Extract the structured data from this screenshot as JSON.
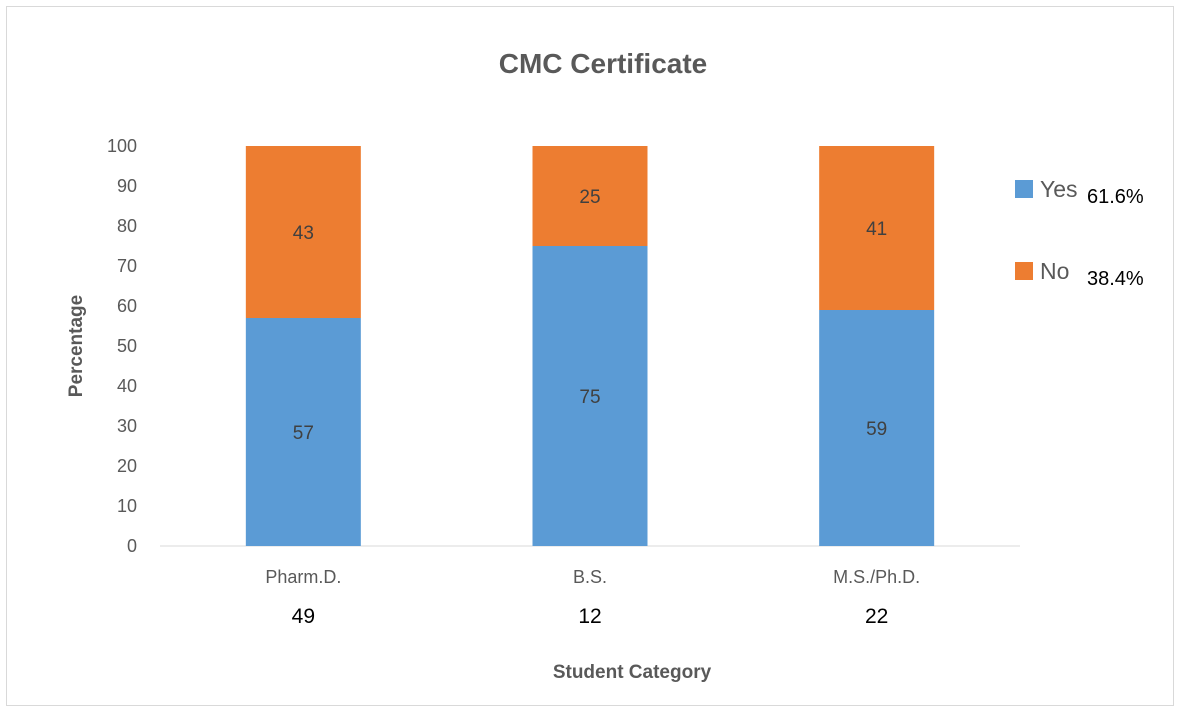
{
  "chart_data": {
    "type": "bar",
    "stacked": true,
    "title": "CMC Certificate",
    "xlabel": "Student Category",
    "ylabel": "Percentage",
    "ylim": [
      0,
      100
    ],
    "yticks": [
      0,
      10,
      20,
      30,
      40,
      50,
      60,
      70,
      80,
      90,
      100
    ],
    "grid": false,
    "legend_position": "right",
    "categories": [
      "Pharm.D.",
      "B.S.",
      "M.S./Ph.D."
    ],
    "category_counts": [
      "49",
      "12",
      "22"
    ],
    "series": [
      {
        "name": "Yes",
        "legend_value": "61.6%",
        "color": "#5b9bd5",
        "values": [
          57,
          75,
          59
        ]
      },
      {
        "name": "No",
        "legend_value": "38.4%",
        "color": "#ed7d31",
        "values": [
          43,
          25,
          41
        ]
      }
    ]
  }
}
